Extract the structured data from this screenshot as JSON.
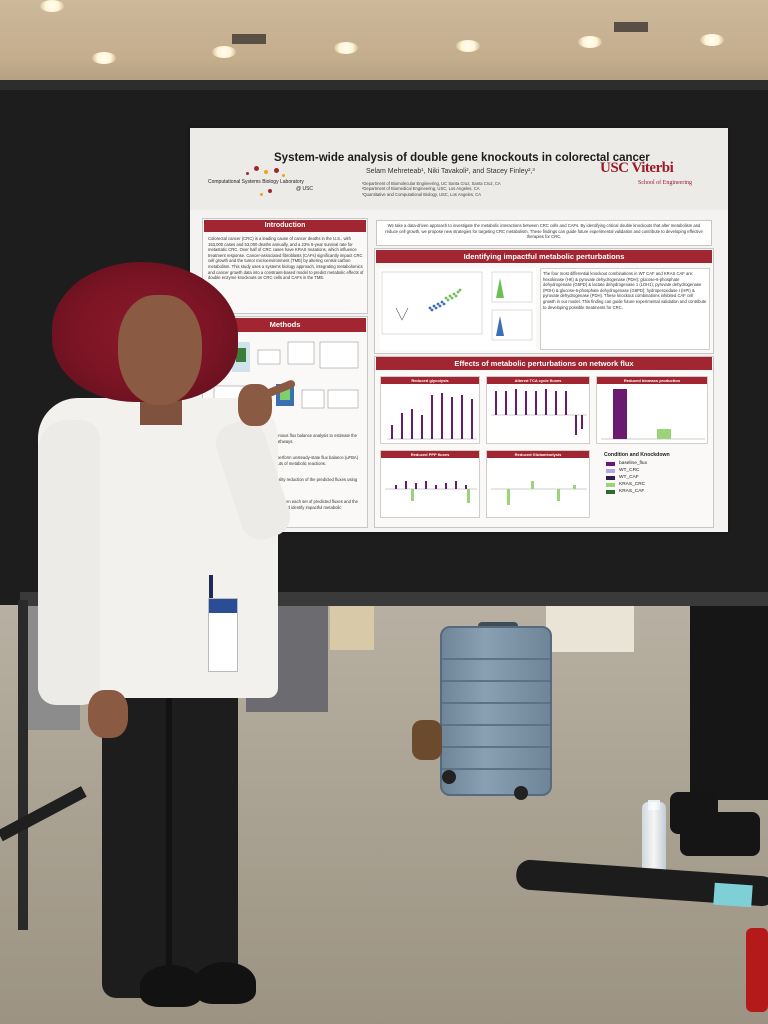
{
  "poster": {
    "title": "System-wide analysis of double gene knockouts in colorectal cancer",
    "authors": "Selam Mehreteab¹, Niki Tavakoli², and Stacey Finley²,³",
    "affiliations": [
      "¹Department of Biomolecular Engineering, UC Santa Cruz, Santa Cruz, CA",
      "²Department of Biomedical Engineering, USC, Los Angeles, CA",
      "³Quantitative and Computational Biology, USC, Los Angeles, CA"
    ],
    "lab_name": "Computational Systems Biology Laboratory",
    "lab_sub": "@ USC",
    "school_name": "USC Viterbi",
    "school_sub": "School of Engineering",
    "sections": {
      "introduction": "Introduction",
      "methods": "Methods",
      "identifying": "Identifying impactful metabolic perturbations",
      "effects": "Effects of metabolic perturbations on network flux"
    },
    "intro_text": "Colorectal cancer (CRC) is a leading cause of cancer deaths in the U.S., with 153,000 cases and 53,000 deaths annually, and a 23% 5-year survival rate for metastatic CRC. Over half of CRC cases have KRAS mutations, which influence treatment response. Cancer-associated fibroblasts (CAFs) significantly impact CRC cell growth and the tumor microenvironment (TME) by altering central carbon metabolism. This study uses a systems biology approach, integrating metabolomics and cancer growth data into a constraint-based model to predict metabolic effects of double enzyme knockouts on CRC cells and CAFs in the TME.",
    "abstract": "We take a data-driven approach to investigate the metabolic interactions between CRC cells and CAFs. By identifying critical double knockouts that alter metabolism and reduce cell growth, we propose new strategies for targeting CRC metabolism. These findings can guide future experimental validation and contribute to developing effective therapies for CRC.",
    "methods_text_1": "We used steady-state parsimonious flux balance analysis to estimate the baseline flux distributions of pathways.",
    "methods_text_2": "We then used these fluxes to perform unsteady-state flux balance (uFBA) and performed double knockouts of metabolic reactions.",
    "methods_text_3": "We then performed dimensionality reduction of the predicted fluxes using representation learning.",
    "methods_text_4": "By calculating the distances between each set of predicted fluxes and the centroid for each condition, we could identify impactful metabolic perturbations.",
    "identify_text": "The four most differential knockout combinations in WT CAF and KRAS CAF are: hexokinase (HK) & pyruvate dehydrogenase (PDH); glucose-6-phosphate dehydrogenase (G6PD) & lactate dehydrogenase 1 (LDH1); pyruvate dehydrogenase (PDH) & glucose-6-phosphate dehydrogenase (G6PD); hydroperoxidase I (HPI) & pyruvate dehydrogenase (PDH). These knockout combinations inhibited CAF cell growth in our model. This finding can guide future experimental validation and contribute to developing possible treatments for CRC.",
    "panels": [
      "Reduced glycolysis",
      "Altered TCA cycle fluxes",
      "Reduced biomass production",
      "Reduced PPP fluxes",
      "Reduced Glutaminolysis"
    ],
    "legend_title": "Condition and Knockdown",
    "legend": [
      {
        "label": "baseline_flux",
        "color": "#6a1b6f"
      },
      {
        "label": "WT_CRC",
        "color": "#b2a9d6"
      },
      {
        "label": "WT_CAF",
        "color": "#2d2044"
      },
      {
        "label": "KRAS_CRC",
        "color": "#9bd37a"
      },
      {
        "label": "KRAS_CAF",
        "color": "#2f6b2f"
      }
    ]
  }
}
